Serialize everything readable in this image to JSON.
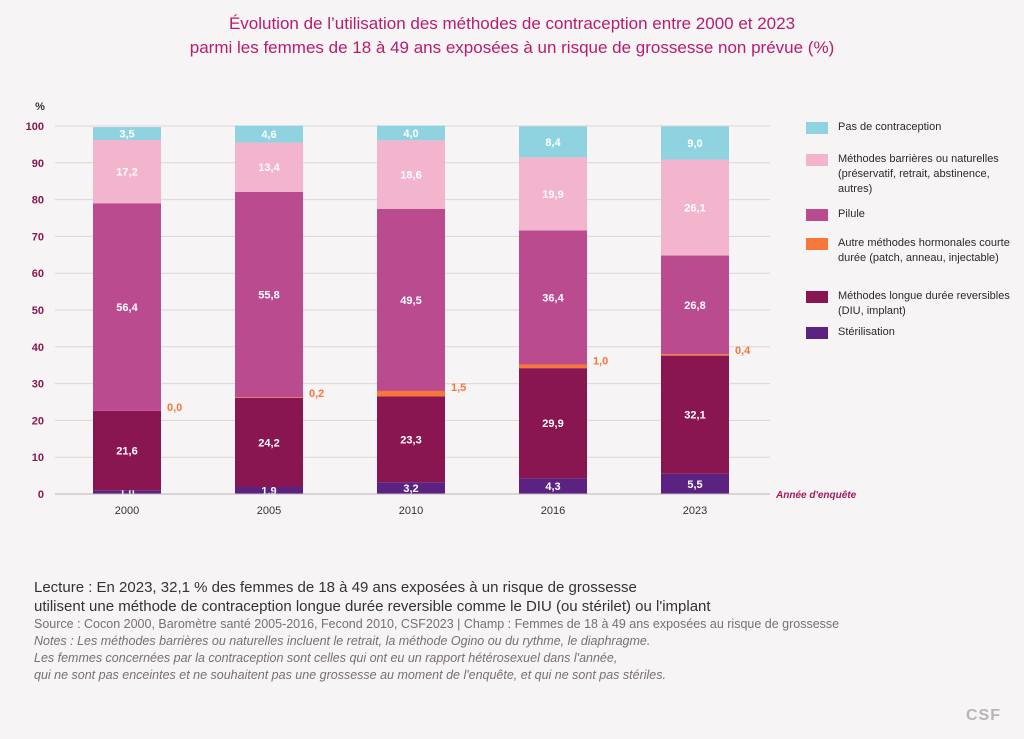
{
  "header": {
    "title_line1": "Évolution de l’utilisation des méthodes de contraception entre 2000 et 2023",
    "title_line2": "parmi les femmes de 18 à 49 ans exposées à un risque de grossesse non prévue (%)"
  },
  "legend": [
    {
      "label": "Pas de contraception",
      "color": "#8fd3e0"
    },
    {
      "label": "Méthodes barrières ou naturelles (préservatif, retrait, abstinence, autres)",
      "color": "#f3b4ce"
    },
    {
      "label": "Pilule",
      "color": "#bb4b8f"
    },
    {
      "label": "Autre méthodes hormonales courte durée (patch, anneau, injectable)",
      "color": "#f7773a"
    },
    {
      "label": "Méthodes longue durée reversibles (DIU, implant)",
      "color": "#8a1651"
    },
    {
      "label": "Stérilisation",
      "color": "#5b2282"
    }
  ],
  "chart_data": {
    "type": "bar",
    "stacked": true,
    "title": "Évolution de l’utilisation des méthodes de contraception entre 2000 et 2023 parmi les femmes de 18 à 49 ans exposées à un risque de grossesse non prévue (%)",
    "ylabel": "%",
    "xlabel": "Année d'enquête",
    "ylim": [
      0,
      100
    ],
    "yticks": [
      0,
      10,
      20,
      30,
      40,
      50,
      60,
      70,
      80,
      90,
      100
    ],
    "grid": true,
    "legend_position": "right",
    "categories": [
      "2000",
      "2005",
      "2010",
      "2016",
      "2023"
    ],
    "series": [
      {
        "name": "Stérilisation",
        "color": "#5b2282",
        "values": [
          1.0,
          1.9,
          3.2,
          4.3,
          5.5
        ],
        "labels": [
          "1,0",
          "1,9",
          "3,2",
          "4,3",
          "5,5"
        ]
      },
      {
        "name": "Méthodes longue durée reversibles (DIU, implant)",
        "color": "#8a1651",
        "values": [
          21.6,
          24.2,
          23.3,
          29.9,
          32.1
        ],
        "labels": [
          "21,6",
          "24,2",
          "23,3",
          "29,9",
          "32,1"
        ]
      },
      {
        "name": "Autre méthodes hormonales courte durée (patch, anneau, injectable)",
        "color": "#f7773a",
        "values": [
          0.0,
          0.2,
          1.5,
          1.0,
          0.4
        ],
        "labels": [
          "0,0",
          "0,2",
          "1,5",
          "1,0",
          "0,4"
        ]
      },
      {
        "name": "Pilule",
        "color": "#bb4b8f",
        "values": [
          56.4,
          55.8,
          49.5,
          36.4,
          26.8
        ],
        "labels": [
          "56,4",
          "55,8",
          "49,5",
          "36,4",
          "26,8"
        ]
      },
      {
        "name": "Méthodes barrières ou naturelles (préservatif, retrait, abstinence, autres)",
        "color": "#f3b4ce",
        "values": [
          17.2,
          13.4,
          18.6,
          19.9,
          26.1
        ],
        "labels": [
          "17,2",
          "13,4",
          "18,6",
          "19,9",
          "26,1"
        ]
      },
      {
        "name": "Pas de contraception",
        "color": "#8fd3e0",
        "values": [
          3.5,
          4.6,
          4.0,
          8.4,
          9.0
        ],
        "labels": [
          "3,5",
          "4,6",
          "4,0",
          "8,4",
          "9,0"
        ]
      }
    ]
  },
  "footer": {
    "lecture_line1": "Lecture : En 2023, 32,1 % des femmes de 18 à 49 ans exposées à un risque de grossesse",
    "lecture_line2": "utilisent une méthode de contraception longue durée reversible comme le DIU (ou stérilet) ou l'implant",
    "source": "Source : Cocon 2000, Baromètre santé 2005-2016, Fecond 2010, CSF2023 | Champ : Femmes de 18 à 49 ans exposées au risque de grossesse",
    "note1": "Notes : Les méthodes barrières ou naturelles incluent le retrait, la méthode Ogino ou du rythme, le diaphragme.",
    "note2": "Les femmes concernées par la contraception sont celles qui ont eu un rapport hétérosexuel dans l'année,",
    "note3": "qui ne sont pas enceintes et ne souhaitent pas une grossesse au moment de l'enquête, et qui ne sont pas stériles."
  },
  "logo": "CSF"
}
